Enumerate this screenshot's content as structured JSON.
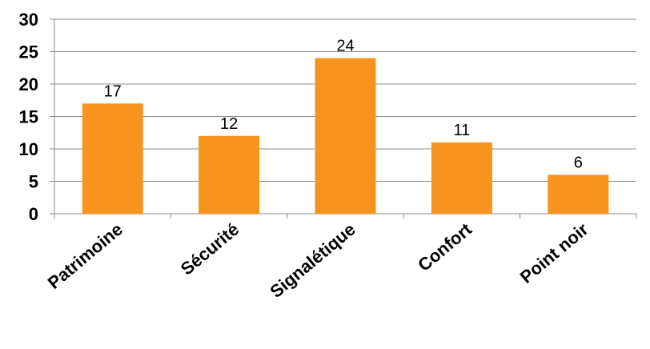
{
  "chart_data": {
    "type": "bar",
    "categories": [
      "Patrimoine",
      "Sécurité",
      "Signalétique",
      "Confort",
      "Point noir"
    ],
    "values": [
      17,
      12,
      24,
      11,
      6
    ],
    "ylim": [
      0,
      30
    ],
    "yticks": [
      0,
      5,
      10,
      15,
      20,
      25,
      30
    ],
    "bar_color": "#F7941D",
    "grid": "horizontal",
    "legend": "none",
    "data_labels": true
  }
}
